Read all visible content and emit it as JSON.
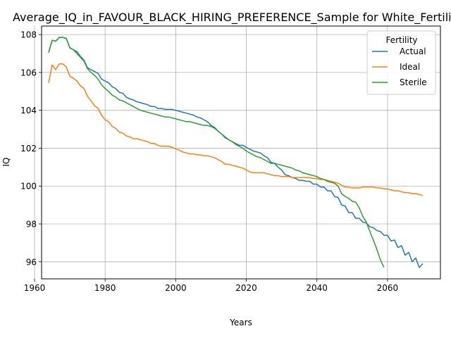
{
  "chart_data": {
    "type": "line",
    "title": "Average_IQ_in_FAVOUR_BLACK_HIRING_PREFERENCE_Sample for White_Fertility",
    "xlabel": "Years",
    "ylabel": "IQ",
    "xlim": [
      1962,
      2075
    ],
    "ylim": [
      95.1,
      108.45
    ],
    "xticks": [
      1960,
      1980,
      2000,
      2020,
      2040,
      2060
    ],
    "yticks": [
      96,
      98,
      100,
      102,
      104,
      106,
      108
    ],
    "grid": true,
    "legend": {
      "title": "Fertility",
      "position": "top-right"
    },
    "series": [
      {
        "name": "Actual",
        "color": "#1f77b4",
        "points": [
          [
            1964,
            107.05
          ],
          [
            1965,
            107.7
          ],
          [
            1966,
            107.65
          ],
          [
            1967,
            107.85
          ],
          [
            1968,
            107.85
          ],
          [
            1969,
            107.8
          ],
          [
            1970,
            107.3
          ],
          [
            1971,
            107.2
          ],
          [
            1972,
            107.1
          ],
          [
            1973,
            106.85
          ],
          [
            1974,
            106.65
          ],
          [
            1975,
            106.25
          ],
          [
            1976,
            106.15
          ],
          [
            1977,
            106.05
          ],
          [
            1978,
            105.95
          ],
          [
            1979,
            105.65
          ],
          [
            1980,
            105.55
          ],
          [
            1981,
            105.45
          ],
          [
            1982,
            105.25
          ],
          [
            1983,
            105.15
          ],
          [
            1984,
            104.95
          ],
          [
            1985,
            104.9
          ],
          [
            1986,
            104.7
          ],
          [
            1987,
            104.6
          ],
          [
            1988,
            104.55
          ],
          [
            1989,
            104.45
          ],
          [
            1990,
            104.4
          ],
          [
            1991,
            104.35
          ],
          [
            1992,
            104.3
          ],
          [
            1993,
            104.2
          ],
          [
            1994,
            104.2
          ],
          [
            1995,
            104.1
          ],
          [
            1996,
            104.1
          ],
          [
            1997,
            104.05
          ],
          [
            1998,
            104.05
          ],
          [
            1999,
            104.05
          ],
          [
            2000,
            104.0
          ],
          [
            2001,
            103.95
          ],
          [
            2002,
            103.9
          ],
          [
            2003,
            103.85
          ],
          [
            2004,
            103.8
          ],
          [
            2005,
            103.75
          ],
          [
            2006,
            103.65
          ],
          [
            2007,
            103.6
          ],
          [
            2008,
            103.5
          ],
          [
            2009,
            103.4
          ],
          [
            2010,
            103.2
          ],
          [
            2011,
            103.1
          ],
          [
            2012,
            102.9
          ],
          [
            2013,
            102.75
          ],
          [
            2014,
            102.55
          ],
          [
            2015,
            102.45
          ],
          [
            2016,
            102.35
          ],
          [
            2017,
            102.25
          ],
          [
            2018,
            102.15
          ],
          [
            2019,
            102.15
          ],
          [
            2020,
            102.05
          ],
          [
            2021,
            101.95
          ],
          [
            2022,
            101.85
          ],
          [
            2023,
            101.8
          ],
          [
            2024,
            101.75
          ],
          [
            2025,
            101.6
          ],
          [
            2026,
            101.5
          ],
          [
            2027,
            101.25
          ],
          [
            2028,
            101.2
          ],
          [
            2029,
            101.0
          ],
          [
            2030,
            100.85
          ],
          [
            2031,
            100.6
          ],
          [
            2032,
            100.55
          ],
          [
            2033,
            100.45
          ],
          [
            2034,
            100.4
          ],
          [
            2035,
            100.3
          ],
          [
            2036,
            100.3
          ],
          [
            2037,
            100.25
          ],
          [
            2038,
            100.25
          ],
          [
            2039,
            100.1
          ],
          [
            2040,
            100.1
          ],
          [
            2041,
            99.95
          ],
          [
            2042,
            99.95
          ],
          [
            2043,
            99.75
          ],
          [
            2044,
            99.75
          ],
          [
            2045,
            99.45
          ],
          [
            2046,
            99.4
          ],
          [
            2047,
            99.0
          ],
          [
            2048,
            98.95
          ],
          [
            2049,
            98.6
          ],
          [
            2050,
            98.6
          ],
          [
            2051,
            98.3
          ],
          [
            2052,
            98.3
          ],
          [
            2053,
            98.1
          ],
          [
            2054,
            98.05
          ],
          [
            2055,
            97.85
          ],
          [
            2056,
            97.8
          ],
          [
            2057,
            97.65
          ],
          [
            2058,
            97.6
          ],
          [
            2059,
            97.4
          ],
          [
            2060,
            97.4
          ],
          [
            2061,
            97.1
          ],
          [
            2062,
            97.15
          ],
          [
            2063,
            96.75
          ],
          [
            2064,
            96.85
          ],
          [
            2065,
            96.35
          ],
          [
            2066,
            96.5
          ],
          [
            2067,
            96.0
          ],
          [
            2068,
            96.2
          ],
          [
            2069,
            95.7
          ],
          [
            2070,
            95.9
          ]
        ]
      },
      {
        "name": "Ideal",
        "color": "#ff7f0e",
        "points": [
          [
            1964,
            105.45
          ],
          [
            1965,
            106.4
          ],
          [
            1966,
            106.15
          ],
          [
            1967,
            106.45
          ],
          [
            1968,
            106.45
          ],
          [
            1969,
            106.3
          ],
          [
            1970,
            105.8
          ],
          [
            1971,
            105.7
          ],
          [
            1972,
            105.55
          ],
          [
            1973,
            105.3
          ],
          [
            1974,
            105.15
          ],
          [
            1975,
            104.75
          ],
          [
            1976,
            104.5
          ],
          [
            1977,
            104.25
          ],
          [
            1978,
            104.1
          ],
          [
            1979,
            103.75
          ],
          [
            1980,
            103.5
          ],
          [
            1981,
            103.4
          ],
          [
            1982,
            103.15
          ],
          [
            1983,
            103.05
          ],
          [
            1984,
            102.85
          ],
          [
            1985,
            102.8
          ],
          [
            1986,
            102.65
          ],
          [
            1987,
            102.6
          ],
          [
            1988,
            102.5
          ],
          [
            1989,
            102.5
          ],
          [
            1990,
            102.45
          ],
          [
            1991,
            102.4
          ],
          [
            1992,
            102.35
          ],
          [
            1993,
            102.25
          ],
          [
            1994,
            102.25
          ],
          [
            1995,
            102.15
          ],
          [
            1996,
            102.1
          ],
          [
            1997,
            102.1
          ],
          [
            1998,
            102.1
          ],
          [
            1999,
            102.05
          ],
          [
            2000,
            101.95
          ],
          [
            2001,
            101.9
          ],
          [
            2002,
            101.8
          ],
          [
            2003,
            101.75
          ],
          [
            2004,
            101.7
          ],
          [
            2005,
            101.7
          ],
          [
            2006,
            101.65
          ],
          [
            2007,
            101.65
          ],
          [
            2008,
            101.6
          ],
          [
            2009,
            101.6
          ],
          [
            2010,
            101.55
          ],
          [
            2011,
            101.5
          ],
          [
            2012,
            101.4
          ],
          [
            2013,
            101.3
          ],
          [
            2014,
            101.15
          ],
          [
            2015,
            101.15
          ],
          [
            2016,
            101.1
          ],
          [
            2017,
            101.05
          ],
          [
            2018,
            101.0
          ],
          [
            2019,
            100.95
          ],
          [
            2020,
            100.85
          ],
          [
            2021,
            100.75
          ],
          [
            2022,
            100.7
          ],
          [
            2023,
            100.7
          ],
          [
            2024,
            100.7
          ],
          [
            2025,
            100.7
          ],
          [
            2026,
            100.65
          ],
          [
            2027,
            100.6
          ],
          [
            2028,
            100.55
          ],
          [
            2029,
            100.55
          ],
          [
            2030,
            100.5
          ],
          [
            2031,
            100.5
          ],
          [
            2032,
            100.5
          ],
          [
            2033,
            100.45
          ],
          [
            2034,
            100.45
          ],
          [
            2035,
            100.45
          ],
          [
            2036,
            100.45
          ],
          [
            2037,
            100.45
          ],
          [
            2038,
            100.45
          ],
          [
            2039,
            100.4
          ],
          [
            2040,
            100.4
          ],
          [
            2041,
            100.35
          ],
          [
            2042,
            100.35
          ],
          [
            2043,
            100.3
          ],
          [
            2044,
            100.25
          ],
          [
            2045,
            100.2
          ],
          [
            2046,
            100.15
          ],
          [
            2047,
            100.05
          ],
          [
            2048,
            99.95
          ],
          [
            2049,
            99.95
          ],
          [
            2050,
            99.9
          ],
          [
            2051,
            99.9
          ],
          [
            2052,
            99.9
          ],
          [
            2053,
            99.95
          ],
          [
            2054,
            99.95
          ],
          [
            2055,
            99.95
          ],
          [
            2056,
            99.95
          ],
          [
            2057,
            99.9
          ],
          [
            2058,
            99.9
          ],
          [
            2059,
            99.85
          ],
          [
            2060,
            99.85
          ],
          [
            2061,
            99.8
          ],
          [
            2062,
            99.75
          ],
          [
            2063,
            99.75
          ],
          [
            2064,
            99.7
          ],
          [
            2065,
            99.65
          ],
          [
            2066,
            99.65
          ],
          [
            2067,
            99.6
          ],
          [
            2068,
            99.6
          ],
          [
            2069,
            99.55
          ],
          [
            2070,
            99.5
          ]
        ]
      },
      {
        "name": "Sterile",
        "color": "#2ca02c",
        "points": [
          [
            1964,
            107.05
          ],
          [
            1965,
            107.7
          ],
          [
            1966,
            107.65
          ],
          [
            1967,
            107.85
          ],
          [
            1968,
            107.85
          ],
          [
            1969,
            107.8
          ],
          [
            1970,
            107.3
          ],
          [
            1971,
            107.2
          ],
          [
            1972,
            107.0
          ],
          [
            1973,
            106.8
          ],
          [
            1974,
            106.6
          ],
          [
            1975,
            106.2
          ],
          [
            1976,
            106.0
          ],
          [
            1977,
            105.85
          ],
          [
            1978,
            105.65
          ],
          [
            1979,
            105.35
          ],
          [
            1980,
            105.15
          ],
          [
            1981,
            105.0
          ],
          [
            1982,
            104.8
          ],
          [
            1983,
            104.7
          ],
          [
            1984,
            104.55
          ],
          [
            1985,
            104.5
          ],
          [
            1986,
            104.4
          ],
          [
            1987,
            104.3
          ],
          [
            1988,
            104.2
          ],
          [
            1989,
            104.1
          ],
          [
            1990,
            104.0
          ],
          [
            1991,
            103.95
          ],
          [
            1992,
            103.9
          ],
          [
            1993,
            103.85
          ],
          [
            1994,
            103.8
          ],
          [
            1995,
            103.75
          ],
          [
            1996,
            103.7
          ],
          [
            1997,
            103.65
          ],
          [
            1998,
            103.65
          ],
          [
            1999,
            103.6
          ],
          [
            2000,
            103.55
          ],
          [
            2001,
            103.5
          ],
          [
            2002,
            103.45
          ],
          [
            2003,
            103.4
          ],
          [
            2004,
            103.4
          ],
          [
            2005,
            103.35
          ],
          [
            2006,
            103.3
          ],
          [
            2007,
            103.25
          ],
          [
            2008,
            103.2
          ],
          [
            2009,
            103.2
          ],
          [
            2010,
            103.15
          ],
          [
            2011,
            103.05
          ],
          [
            2012,
            102.9
          ],
          [
            2013,
            102.75
          ],
          [
            2014,
            102.6
          ],
          [
            2015,
            102.45
          ],
          [
            2016,
            102.35
          ],
          [
            2017,
            102.2
          ],
          [
            2018,
            102.1
          ],
          [
            2019,
            102.0
          ],
          [
            2020,
            101.85
          ],
          [
            2021,
            101.75
          ],
          [
            2022,
            101.65
          ],
          [
            2023,
            101.55
          ],
          [
            2024,
            101.5
          ],
          [
            2025,
            101.4
          ],
          [
            2026,
            101.3
          ],
          [
            2027,
            101.2
          ],
          [
            2028,
            101.2
          ],
          [
            2029,
            101.15
          ],
          [
            2030,
            101.1
          ],
          [
            2031,
            101.05
          ],
          [
            2032,
            101.0
          ],
          [
            2033,
            100.95
          ],
          [
            2034,
            100.85
          ],
          [
            2035,
            100.8
          ],
          [
            2036,
            100.7
          ],
          [
            2037,
            100.65
          ],
          [
            2038,
            100.6
          ],
          [
            2039,
            100.55
          ],
          [
            2040,
            100.5
          ],
          [
            2041,
            100.4
          ],
          [
            2042,
            100.35
          ],
          [
            2043,
            100.25
          ],
          [
            2044,
            100.2
          ],
          [
            2045,
            100.15
          ],
          [
            2046,
            100.0
          ],
          [
            2047,
            99.6
          ],
          [
            2048,
            99.45
          ],
          [
            2049,
            99.35
          ],
          [
            2050,
            99.2
          ],
          [
            2051,
            99.15
          ],
          [
            2052,
            98.85
          ],
          [
            2053,
            98.4
          ],
          [
            2054,
            98.1
          ],
          [
            2055,
            97.6
          ],
          [
            2056,
            97.15
          ],
          [
            2057,
            96.65
          ],
          [
            2058,
            96.1
          ],
          [
            2059,
            95.7
          ]
        ]
      }
    ]
  }
}
